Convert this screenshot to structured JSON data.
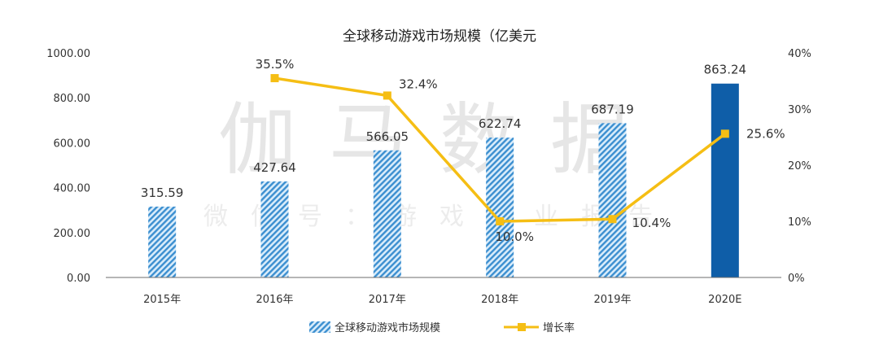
{
  "watermark": {
    "main": "伽马数据",
    "sub": "微信号：游戏产业报告"
  },
  "colors": {
    "bar_hatch_fg": "#3c8fd0",
    "bar_hatch_bg": "#d9ecfa",
    "bar_solid": "#0f5ea8",
    "line": "#f5be14",
    "axis": "#6e6e6e"
  },
  "chart_data": {
    "type": "bar",
    "title": "全球移动游戏市场规模（亿美元",
    "categories": [
      "2015年",
      "2016年",
      "2017年",
      "2018年",
      "2019年",
      "2020E"
    ],
    "series": [
      {
        "name": "全球移动游戏市场规模",
        "kind": "bar",
        "axis": "left",
        "values": [
          315.59,
          427.64,
          566.05,
          622.74,
          687.19,
          863.24
        ],
        "labels": [
          "315.59",
          "427.64",
          "566.05",
          "622.74",
          "687.19",
          "863.24"
        ]
      },
      {
        "name": "增长率",
        "kind": "line",
        "axis": "right",
        "values": [
          null,
          35.5,
          32.4,
          10.0,
          10.4,
          25.6
        ],
        "labels": [
          null,
          "35.5%",
          "32.4%",
          "10.0%",
          "10.4%",
          "25.6%"
        ]
      }
    ],
    "y_left": {
      "ylim": [
        0,
        1000
      ],
      "ticks": [
        "0.00",
        "200.00",
        "400.00",
        "600.00",
        "800.00",
        "1000.00"
      ]
    },
    "y_right": {
      "ylim": [
        0,
        40
      ],
      "ticks": [
        "0%",
        "10%",
        "20%",
        "30%",
        "40%"
      ]
    },
    "legend": {
      "position": "bottom",
      "items": [
        "全球移动游戏市场规模",
        "增长率"
      ]
    },
    "grid": false
  }
}
